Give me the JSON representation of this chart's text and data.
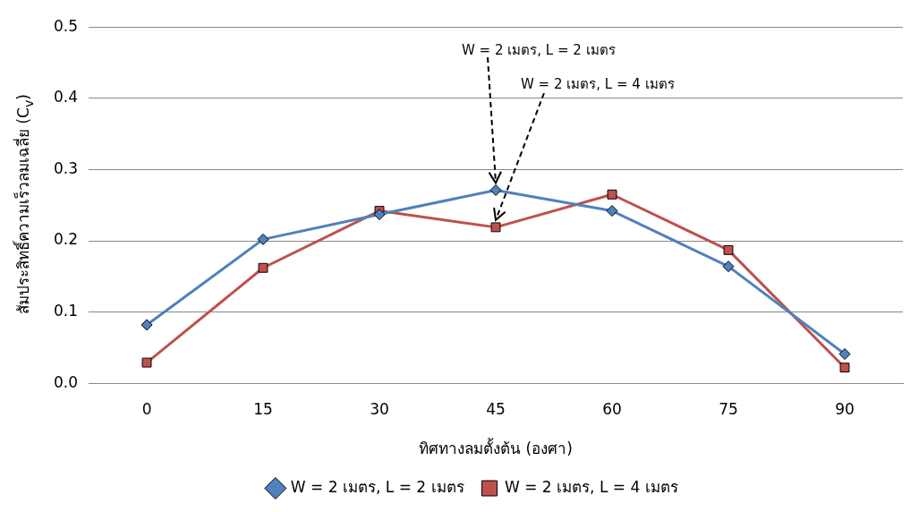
{
  "chart_data": {
    "type": "line",
    "xlabel": "ทิศทางลมตั้งต้น (องศา)",
    "ylabel": "สัมประสิทธิ์ความเร็วลมเฉลี่ย (C$_{v}$)",
    "categories": [
      "0",
      "15",
      "30",
      "45",
      "60",
      "75",
      "90"
    ],
    "series": [
      {
        "name": "W = 2 เมตร, L = 2 เมตร",
        "color": "#4f81bd",
        "marker": "diamond",
        "values": [
          0.082,
          0.202,
          0.237,
          0.271,
          0.242,
          0.164,
          0.041
        ]
      },
      {
        "name": "W = 2 เมตร, L = 4 เมตร",
        "color": "#c0504d",
        "marker": "square",
        "values": [
          0.029,
          0.162,
          0.242,
          0.219,
          0.265,
          0.187,
          0.022
        ]
      }
    ],
    "ylim": [
      0,
      0.5
    ],
    "yticks": [
      {
        "value": 0,
        "label": "0.0"
      },
      {
        "value": 0.1,
        "label": "0.1"
      },
      {
        "value": 0.2,
        "label": "0.2"
      },
      {
        "value": 0.3,
        "label": "0.3"
      },
      {
        "value": 0.4,
        "label": "0.4"
      },
      {
        "value": 0.5,
        "label": "0.5"
      }
    ],
    "grid": "y",
    "legend": "bottom",
    "line_style": "solid",
    "annotations": [
      {
        "text": "W = 2 เมตร, L = 2 เมตร",
        "x": "45",
        "y": 0.271
      },
      {
        "text": "W = 2 เมตร, L = 4 เมตร",
        "x": "45",
        "y": 0.219
      }
    ]
  }
}
